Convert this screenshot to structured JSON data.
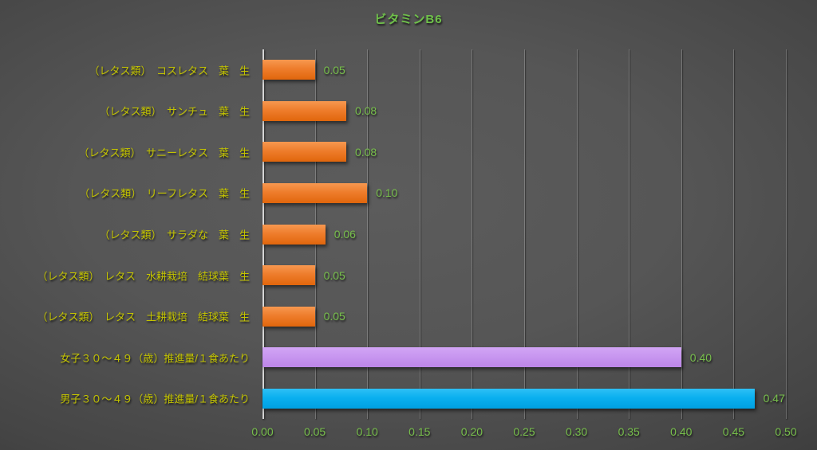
{
  "colors": {
    "background_center": "#5c5c5c",
    "background_edge": "#1f1f1f",
    "title_green": "#6fc24a",
    "category_label_yellow": "#c4c400",
    "value_label_green": "#77bf4b",
    "tick_label_green": "#77bf4b",
    "gridline": "rgba(255,255,255,0.22)",
    "axis_line": "rgba(235,235,235,0.85)"
  },
  "chart_data": {
    "type": "bar",
    "orientation": "horizontal",
    "title": "ビタミンB6",
    "categories": [
      "（レタス類）　コスレタス　葉　生",
      "（レタス類）　サンチュ　葉　生",
      "（レタス類）　サニーレタス　葉　生",
      "（レタス類）　リーフレタス　葉　生",
      "（レタス類）　サラダな　葉　生",
      "（レタス類）　レタス　水耕栽培　結球葉　生",
      "（レタス類）　レタス　土耕栽培　結球葉　生",
      "女子３０～４９（歳）推進量/１食あたり",
      "男子３０～４９（歳）推進量/１食あたり"
    ],
    "values": [
      0.05,
      0.08,
      0.08,
      0.1,
      0.06,
      0.05,
      0.05,
      0.4,
      0.47
    ],
    "value_labels": [
      "0.05",
      "0.08",
      "0.08",
      "0.10",
      "0.06",
      "0.05",
      "0.05",
      "0.40",
      "0.47"
    ],
    "bar_colors": [
      {
        "top": "#f79850",
        "mid": "#ee7d2c",
        "bottom": "#e1660c"
      },
      {
        "top": "#f79850",
        "mid": "#ee7d2c",
        "bottom": "#e1660c"
      },
      {
        "top": "#f79850",
        "mid": "#ee7d2c",
        "bottom": "#e1660c"
      },
      {
        "top": "#f79850",
        "mid": "#ee7d2c",
        "bottom": "#e1660c"
      },
      {
        "top": "#f79850",
        "mid": "#ee7d2c",
        "bottom": "#e1660c"
      },
      {
        "top": "#f79850",
        "mid": "#ee7d2c",
        "bottom": "#e1660c"
      },
      {
        "top": "#f79850",
        "mid": "#ee7d2c",
        "bottom": "#e1660c"
      },
      {
        "top": "#d2a5f5",
        "mid": "#c897f0",
        "bottom": "#bc85e8"
      },
      {
        "top": "#2ec0f5",
        "mid": "#0ab0ef",
        "bottom": "#00a0e2"
      }
    ],
    "xlim": [
      0,
      0.5
    ],
    "x_ticks": [
      "0.00",
      "0.05",
      "0.10",
      "0.15",
      "0.20",
      "0.25",
      "0.30",
      "0.35",
      "0.40",
      "0.45",
      "0.50"
    ],
    "grid": true,
    "legend": "none"
  }
}
